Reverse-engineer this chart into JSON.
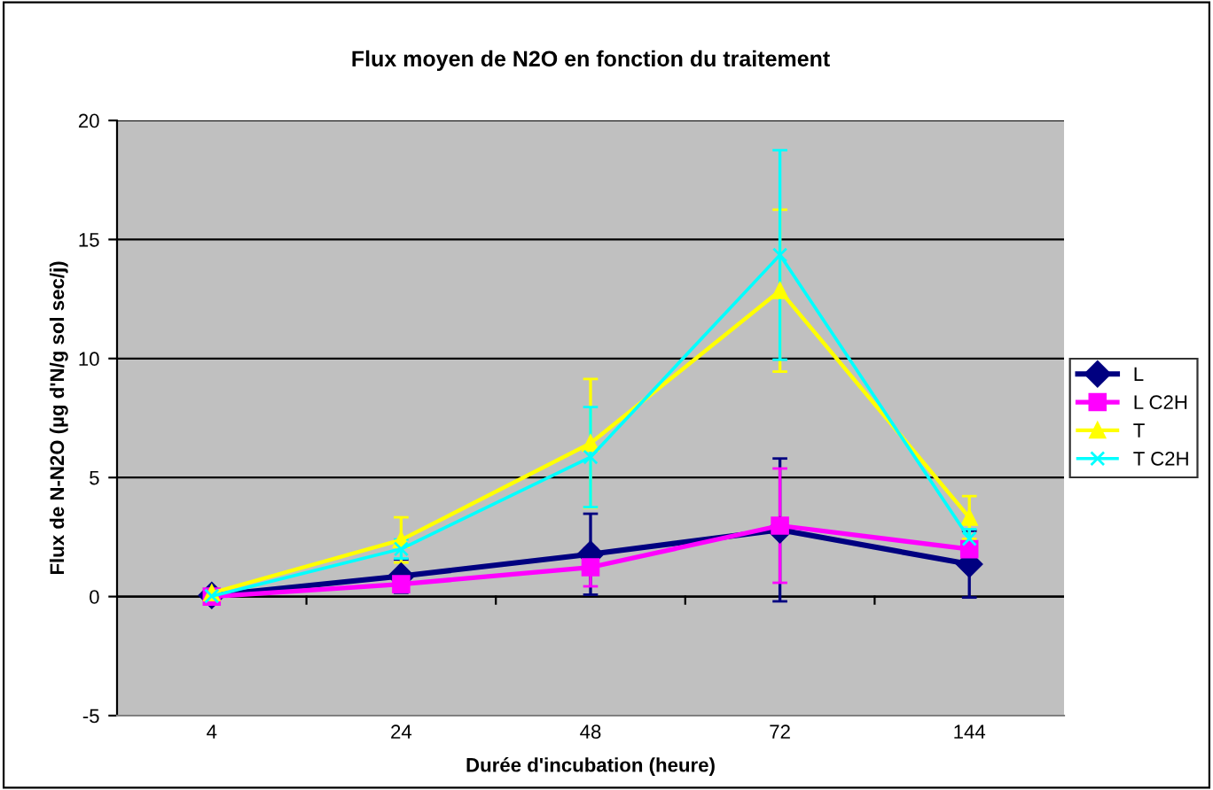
{
  "chart_data": {
    "type": "line",
    "title": "Flux moyen de N2O en fonction du traitement",
    "xlabel": "Durée d'incubation (heure)",
    "ylabel": "Flux de N-N2O (µg d'N/g sol sec/j)",
    "categories": [
      "4",
      "24",
      "48",
      "72",
      "144"
    ],
    "series": [
      {
        "name": "L",
        "color": "#000080",
        "marker": "diamond",
        "values": [
          0.05,
          0.86,
          1.78,
          2.8,
          1.36
        ],
        "errors": [
          null,
          0.7,
          1.7,
          3.0,
          1.4
        ]
      },
      {
        "name": "L C2H",
        "color": "#ff00ff",
        "marker": "square",
        "values": [
          0.0,
          0.52,
          1.23,
          2.98,
          1.99
        ],
        "errors": [
          null,
          0.3,
          0.8,
          2.4,
          0.3
        ]
      },
      {
        "name": "T",
        "color": "#ffff00",
        "marker": "triangle",
        "values": [
          0.15,
          2.38,
          6.44,
          12.85,
          3.32
        ],
        "errors": [
          null,
          0.95,
          2.7,
          3.4,
          0.9
        ]
      },
      {
        "name": "T C2H",
        "color": "#00ffff",
        "marker": "cross",
        "values": [
          0.02,
          2.0,
          5.86,
          14.35,
          2.43
        ],
        "errors": [
          null,
          0.4,
          2.1,
          4.4,
          0.4
        ]
      }
    ],
    "ylim": [
      -5,
      20
    ],
    "yticks": [
      -5,
      0,
      5,
      10,
      15,
      20
    ],
    "grid": "y",
    "legend": "right"
  }
}
